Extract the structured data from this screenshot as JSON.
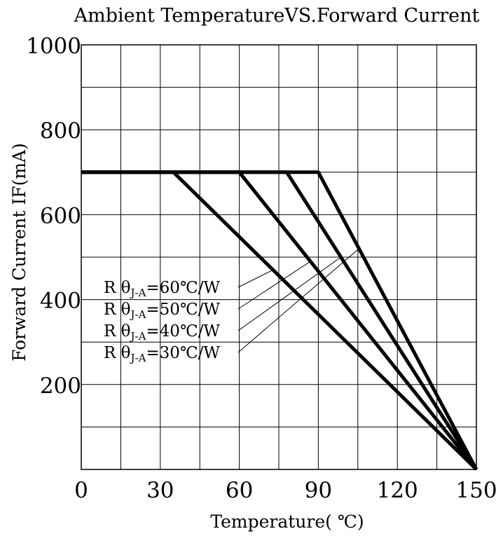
{
  "chart_data": {
    "type": "line",
    "title": "Ambient TemperatureVS.Forward Current",
    "xlabel": "Temperature( ℃)",
    "ylabel": "Forward Current IF(mA)",
    "xlim": [
      0,
      150
    ],
    "ylim": [
      0,
      1000
    ],
    "x_ticks": [
      0,
      30,
      60,
      90,
      120,
      150
    ],
    "y_ticks": [
      200,
      400,
      600,
      800,
      1000
    ],
    "x_tick_labels": [
      "0",
      "30",
      "60",
      "90",
      "120",
      "150"
    ],
    "y_tick_labels": [
      "200",
      "400",
      "600",
      "800",
      "1000"
    ],
    "grid": true,
    "series": [
      {
        "name": "Rθ J-A=60℃/W",
        "x": [
          0,
          35,
          150
        ],
        "y": [
          700,
          700,
          0
        ]
      },
      {
        "name": "Rθ J-A=50℃/W",
        "x": [
          0,
          60,
          150
        ],
        "y": [
          700,
          700,
          0
        ]
      },
      {
        "name": "Rθ J-A=40℃/W",
        "x": [
          0,
          78,
          150
        ],
        "y": [
          700,
          700,
          0
        ]
      },
      {
        "name": "Rθ J-A=30℃/W",
        "x": [
          0,
          90,
          150
        ],
        "y": [
          700,
          700,
          0
        ]
      }
    ],
    "legend": [
      {
        "prefix": "R θ",
        "sub": "J-A",
        "suffix": "=60℃/W"
      },
      {
        "prefix": "R θ",
        "sub": "J-A",
        "suffix": "=50℃/W"
      },
      {
        "prefix": "R θ",
        "sub": "J-A",
        "suffix": "=40℃/W"
      },
      {
        "prefix": "R θ",
        "sub": "J-A",
        "suffix": "=30℃/W"
      }
    ],
    "legend_placement": "inside-left-center"
  }
}
